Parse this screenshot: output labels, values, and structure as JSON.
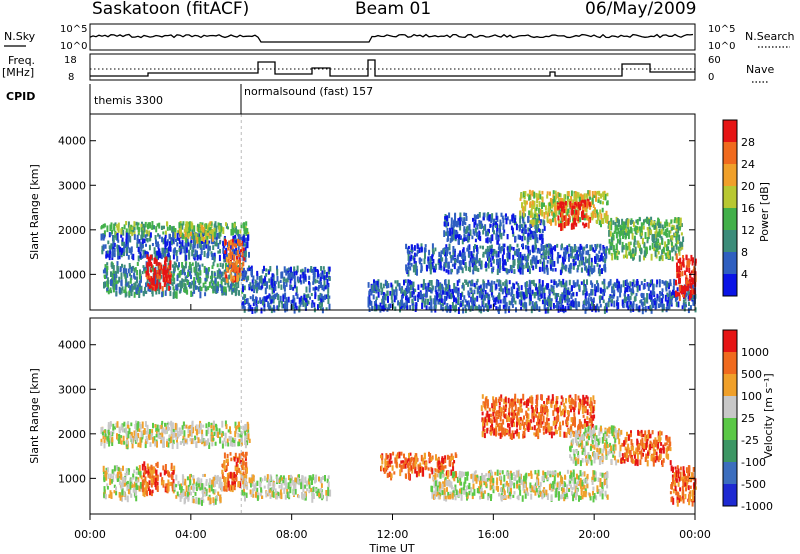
{
  "header": {
    "title_left": "Saskatoon (fitACF)",
    "title_center": "Beam 01",
    "title_right": "06/May/2009"
  },
  "top_panels": {
    "nsky_label": "N.Sky",
    "nsearch_label": "N.Search",
    "noise_ticks_left": [
      "10^5",
      "10^0"
    ],
    "noise_ticks_right": [
      "10^5",
      "10^0"
    ],
    "freq_label_1": "Freq.",
    "freq_label_2": "[MHz]",
    "freq_ticks": [
      "18",
      "8"
    ],
    "nave_label": "Nave",
    "nave_ticks": [
      "60",
      "0"
    ],
    "cpid_label": "CPID",
    "cpid_segments": [
      {
        "label": "themis 3300",
        "start_hour": 0
      },
      {
        "label": "normalsound (fast) 157",
        "start_hour": 6
      }
    ]
  },
  "axes": {
    "ylabel": "Slant Range [km]",
    "y_ticks": [
      "1000",
      "2000",
      "3000",
      "4000"
    ],
    "x_ticks": [
      "00:00",
      "04:00",
      "08:00",
      "12:00",
      "16:00",
      "20:00",
      "00:00"
    ],
    "xlabel": "Time UT"
  },
  "power_scale": {
    "label": "Power [dB]",
    "ticks": [
      "4",
      "8",
      "12",
      "16",
      "20",
      "24",
      "28"
    ],
    "colors": [
      "#0a14e6",
      "#2f5fc0",
      "#3c8c7a",
      "#42b04a",
      "#b8c832",
      "#f0a02a",
      "#f06a1e",
      "#e61414"
    ]
  },
  "velocity_scale": {
    "label": "Velocity [m s⁻¹]",
    "ticks": [
      "1000",
      "500",
      "100",
      "25",
      "-25",
      "-100",
      "-500",
      "-1000"
    ],
    "colors": [
      "#1e2ad2",
      "#3c6ebe",
      "#3c9664",
      "#5ac846",
      "#c8c8c8",
      "#f0a02a",
      "#f06a1e",
      "#e61414"
    ]
  },
  "chart_data": {
    "type": "heatmap",
    "x_range_hours": [
      0,
      24
    ],
    "y_range_km": [
      200,
      4600
    ],
    "power_blobs": [
      {
        "t": 0.4,
        "t2": 6.3,
        "r": 1950,
        "r2": 2200,
        "level": 3
      },
      {
        "t": 0.4,
        "t2": 6.3,
        "r": 1400,
        "r2": 1950,
        "level": 1
      },
      {
        "t": 0.5,
        "t2": 6.0,
        "r": 600,
        "r2": 1300,
        "level": 2
      },
      {
        "t": 2.2,
        "t2": 3.2,
        "r": 700,
        "r2": 1450,
        "level": 7
      },
      {
        "t": 5.3,
        "t2": 6.1,
        "r": 900,
        "r2": 1800,
        "level": 6
      },
      {
        "t": 3.5,
        "t2": 5.0,
        "r": 1800,
        "r2": 2200,
        "level": 4
      },
      {
        "t": 6.0,
        "t2": 9.5,
        "r": 700,
        "r2": 1200,
        "level": 1
      },
      {
        "t": 6.0,
        "t2": 9.5,
        "r": 250,
        "r2": 600,
        "level": 1
      },
      {
        "t": 11.0,
        "t2": 24.0,
        "r": 250,
        "r2": 900,
        "level": 1
      },
      {
        "t": 12.5,
        "t2": 20.5,
        "r": 1100,
        "r2": 1700,
        "level": 1
      },
      {
        "t": 14.0,
        "t2": 18.0,
        "r": 1800,
        "r2": 2400,
        "level": 1
      },
      {
        "t": 17.0,
        "t2": 20.5,
        "r": 2200,
        "r2": 2900,
        "level": 4
      },
      {
        "t": 18.5,
        "t2": 19.8,
        "r": 2100,
        "r2": 2700,
        "level": 7
      },
      {
        "t": 20.5,
        "t2": 23.5,
        "r": 1400,
        "r2": 2300,
        "level": 3
      },
      {
        "t": 23.2,
        "t2": 24.0,
        "r": 500,
        "r2": 1500,
        "level": 7
      }
    ],
    "velocity_blobs": [
      {
        "t": 0.4,
        "t2": 6.3,
        "r": 1800,
        "r2": 2300,
        "level": 4
      },
      {
        "t": 0.5,
        "t2": 2.0,
        "r": 600,
        "r2": 1300,
        "level": 4
      },
      {
        "t": 2.0,
        "t2": 3.3,
        "r": 700,
        "r2": 1400,
        "level": 6
      },
      {
        "t": 3.3,
        "t2": 5.2,
        "r": 500,
        "r2": 1100,
        "level": 4
      },
      {
        "t": 5.2,
        "t2": 6.2,
        "r": 800,
        "r2": 1600,
        "level": 6
      },
      {
        "t": 6.0,
        "t2": 9.5,
        "r": 600,
        "r2": 1100,
        "level": 4
      },
      {
        "t": 11.5,
        "t2": 14.5,
        "r": 1100,
        "r2": 1600,
        "level": 6
      },
      {
        "t": 13.5,
        "t2": 20.5,
        "r": 600,
        "r2": 1200,
        "level": 4
      },
      {
        "t": 15.5,
        "t2": 20.0,
        "r": 2000,
        "r2": 2900,
        "level": 6
      },
      {
        "t": 19.0,
        "t2": 21.0,
        "r": 1400,
        "r2": 2200,
        "level": 4
      },
      {
        "t": 21.0,
        "t2": 23.0,
        "r": 1400,
        "r2": 2100,
        "level": 6
      },
      {
        "t": 23.0,
        "t2": 24.0,
        "r": 500,
        "r2": 1300,
        "level": 6
      }
    ]
  }
}
